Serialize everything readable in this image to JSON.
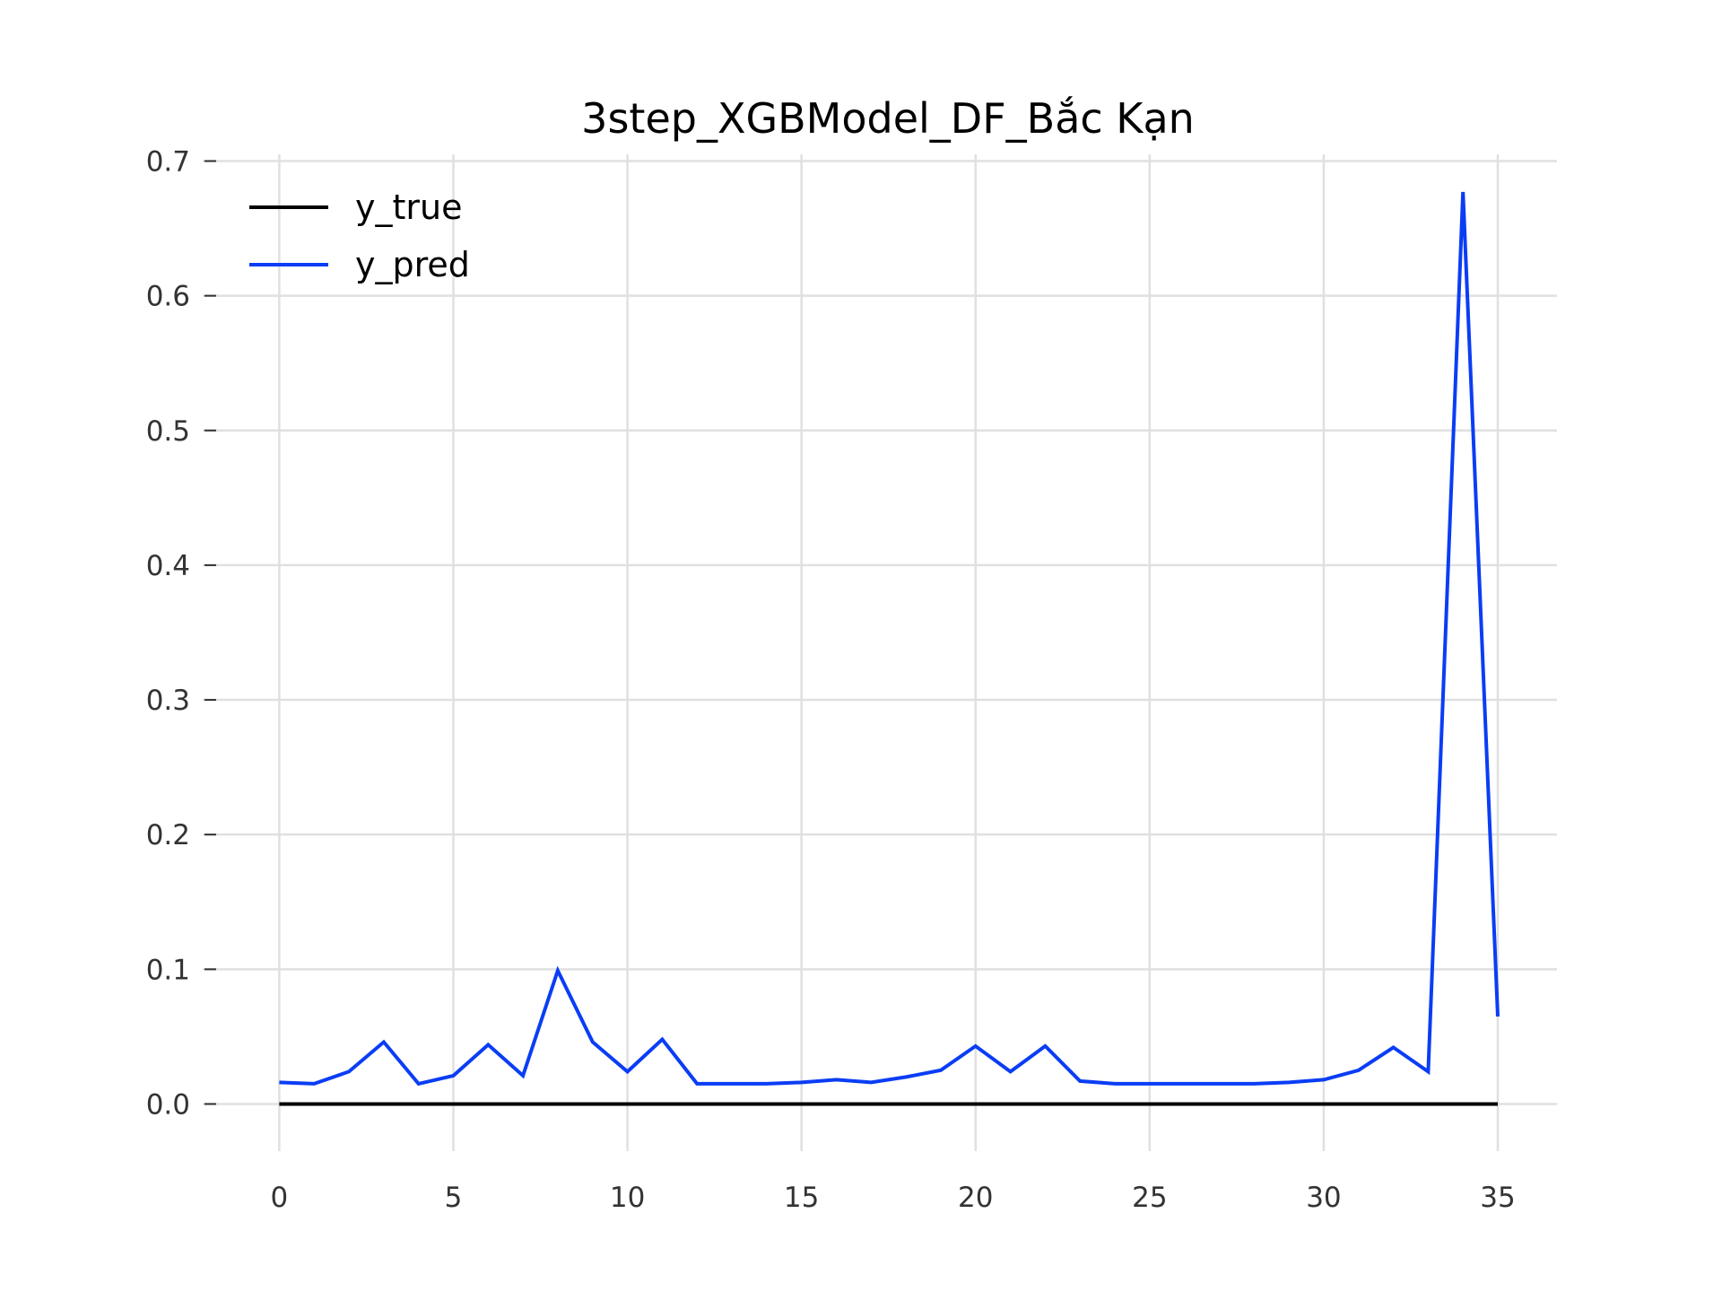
{
  "chart_data": {
    "type": "line",
    "title": "3step_XGBModel_DF_Bắc Kạn",
    "xlabel": "",
    "ylabel": "",
    "xlim": [
      -2.2,
      36.7
    ],
    "ylim": [
      -0.035,
      0.705
    ],
    "x_ticks": [
      0,
      5,
      10,
      15,
      20,
      25,
      30,
      35
    ],
    "x_tick_labels": [
      "0",
      "5",
      "10",
      "15",
      "20",
      "25",
      "30",
      "35"
    ],
    "y_ticks": [
      0.0,
      0.1,
      0.2,
      0.3,
      0.4,
      0.5,
      0.6,
      0.7
    ],
    "y_tick_labels": [
      "0.0",
      "0.1",
      "0.2",
      "0.3",
      "0.4",
      "0.5",
      "0.6",
      "0.7"
    ],
    "grid": true,
    "legend_position": "top-left",
    "x": [
      0,
      1,
      2,
      3,
      4,
      5,
      6,
      7,
      8,
      9,
      10,
      11,
      12,
      13,
      14,
      15,
      16,
      17,
      18,
      19,
      20,
      21,
      22,
      23,
      24,
      25,
      26,
      27,
      28,
      29,
      30,
      31,
      32,
      33,
      34,
      35
    ],
    "series": [
      {
        "name": "y_true",
        "color": "#000000",
        "values": [
          0,
          0,
          0,
          0,
          0,
          0,
          0,
          0,
          0,
          0,
          0,
          0,
          0,
          0,
          0,
          0,
          0,
          0,
          0,
          0,
          0,
          0,
          0,
          0,
          0,
          0,
          0,
          0,
          0,
          0,
          0,
          0,
          0,
          0,
          0,
          0
        ]
      },
      {
        "name": "y_pred",
        "color": "#0a3df5",
        "values": [
          0.016,
          0.015,
          0.024,
          0.046,
          0.015,
          0.021,
          0.044,
          0.021,
          0.099,
          0.046,
          0.024,
          0.048,
          0.015,
          0.015,
          0.015,
          0.016,
          0.018,
          0.016,
          0.02,
          0.025,
          0.043,
          0.024,
          0.043,
          0.017,
          0.015,
          0.015,
          0.015,
          0.015,
          0.015,
          0.016,
          0.018,
          0.025,
          0.042,
          0.024,
          0.677,
          0.065
        ]
      }
    ]
  }
}
